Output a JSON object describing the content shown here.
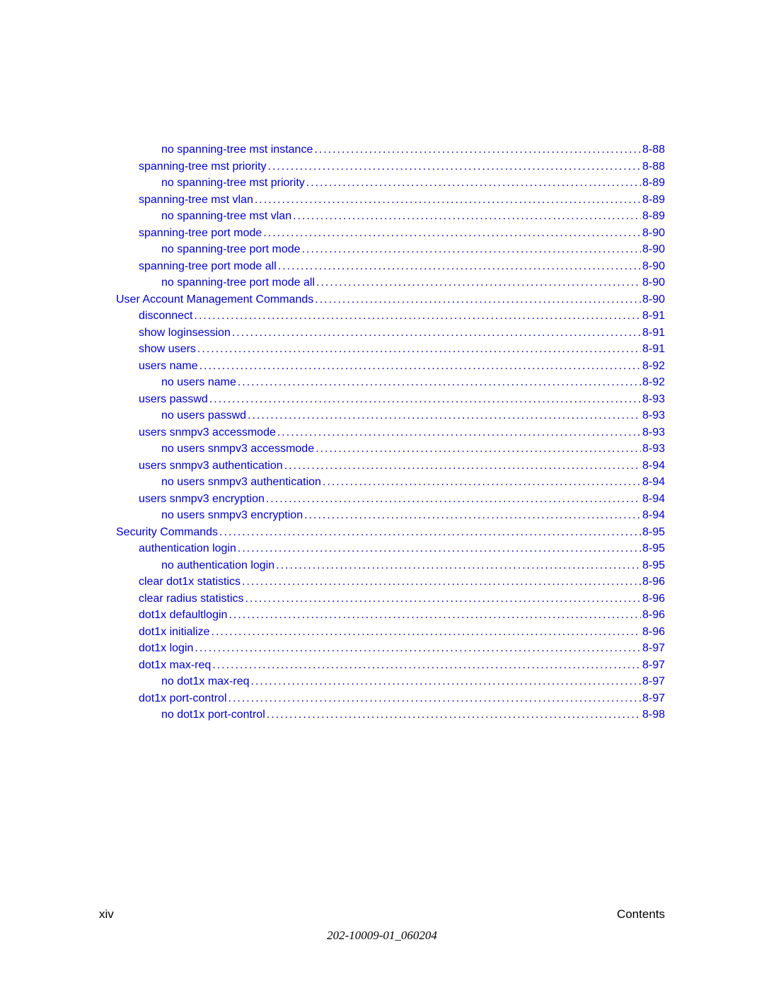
{
  "colors": {
    "link": "#0000cc",
    "text": "#000000",
    "background": "#ffffff"
  },
  "typography": {
    "body_font": "Arial",
    "body_size": 16,
    "footer_size": 17,
    "line_height": 23.5
  },
  "entries": [
    {
      "indent": 3,
      "title": "no spanning-tree mst instance",
      "page": "8-88"
    },
    {
      "indent": 2,
      "title": "spanning-tree mst priority",
      "page": "8-88"
    },
    {
      "indent": 3,
      "title": "no spanning-tree mst priority",
      "page": "8-89"
    },
    {
      "indent": 2,
      "title": "spanning-tree mst vlan",
      "page": "8-89"
    },
    {
      "indent": 3,
      "title": "no spanning-tree mst vlan",
      "page": "8-89"
    },
    {
      "indent": 2,
      "title": "spanning-tree port mode",
      "page": "8-90"
    },
    {
      "indent": 3,
      "title": "no spanning-tree port mode",
      "page": "8-90"
    },
    {
      "indent": 2,
      "title": "spanning-tree port mode all",
      "page": "8-90"
    },
    {
      "indent": 3,
      "title": "no spanning-tree port mode all",
      "page": "8-90"
    },
    {
      "indent": 1,
      "title": "User Account Management Commands",
      "page": "8-90"
    },
    {
      "indent": 2,
      "title": "disconnect",
      "page": "8-91"
    },
    {
      "indent": 2,
      "title": "show loginsession",
      "page": "8-91"
    },
    {
      "indent": 2,
      "title": "show users",
      "page": "8-91"
    },
    {
      "indent": 2,
      "title": "users name",
      "page": "8-92"
    },
    {
      "indent": 3,
      "title": "no users name",
      "page": "8-92"
    },
    {
      "indent": 2,
      "title": "users passwd",
      "page": "8-93"
    },
    {
      "indent": 3,
      "title": "no users passwd",
      "page": "8-93"
    },
    {
      "indent": 2,
      "title": "users snmpv3 accessmode",
      "page": "8-93"
    },
    {
      "indent": 3,
      "title": "no users snmpv3 accessmode",
      "page": "8-93"
    },
    {
      "indent": 2,
      "title": "users snmpv3 authentication",
      "page": "8-94"
    },
    {
      "indent": 3,
      "title": "no users snmpv3 authentication",
      "page": "8-94"
    },
    {
      "indent": 2,
      "title": "users snmpv3 encryption",
      "page": "8-94"
    },
    {
      "indent": 3,
      "title": "no users snmpv3 encryption",
      "page": "8-94"
    },
    {
      "indent": 1,
      "title": "Security Commands",
      "page": "8-95"
    },
    {
      "indent": 2,
      "title": "authentication login",
      "page": "8-95"
    },
    {
      "indent": 3,
      "title": "no authentication login",
      "page": "8-95"
    },
    {
      "indent": 2,
      "title": "clear dot1x statistics",
      "page": "8-96"
    },
    {
      "indent": 2,
      "title": "clear radius statistics",
      "page": "8-96"
    },
    {
      "indent": 2,
      "title": "dot1x defaultlogin",
      "page": "8-96"
    },
    {
      "indent": 2,
      "title": "dot1x initialize",
      "page": "8-96"
    },
    {
      "indent": 2,
      "title": "dot1x login",
      "page": "8-97"
    },
    {
      "indent": 2,
      "title": "dot1x max-req",
      "page": "8-97"
    },
    {
      "indent": 3,
      "title": "no dot1x max-req",
      "page": "8-97"
    },
    {
      "indent": 2,
      "title": "dot1x port-control",
      "page": "8-97"
    },
    {
      "indent": 3,
      "title": "no dot1x port-control",
      "page": "8-98"
    }
  ],
  "footer": {
    "page_number": "xiv",
    "section": "Contents",
    "doc_id": "202-10009-01_060204"
  }
}
